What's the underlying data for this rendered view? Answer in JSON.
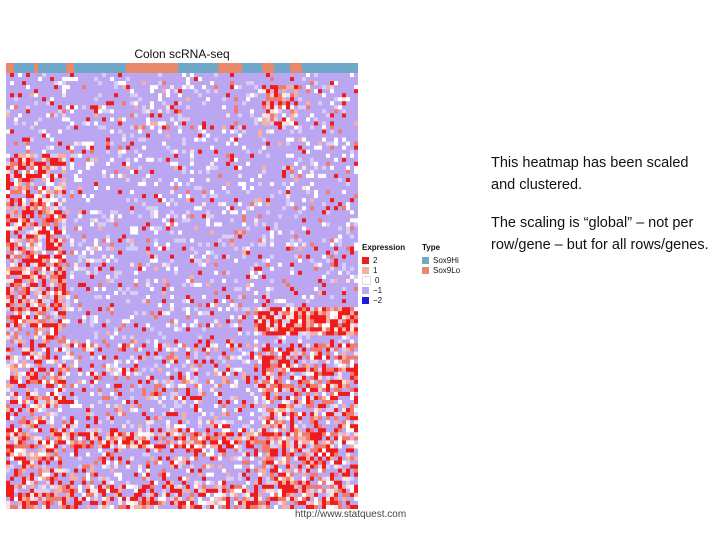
{
  "chart_data": {
    "type": "heatmap",
    "title": "Colon scRNA-seq",
    "xlabel": "",
    "ylabel": "",
    "color_scale": {
      "min": -2,
      "max": 2
    },
    "legend": {
      "expression": {
        "title": "Expression",
        "entries": [
          {
            "label": "2",
            "color": "#ee1c1c"
          },
          {
            "label": "1",
            "color": "#f5b0a6"
          },
          {
            "label": "0",
            "color": "#ffffff"
          },
          {
            "label": "−1",
            "color": "#bba6f2"
          },
          {
            "label": "−2",
            "color": "#1b1bdd"
          }
        ]
      },
      "type": {
        "title": "Type",
        "entries": [
          {
            "label": "Sox9Hi",
            "color": "#6fa8c9"
          },
          {
            "label": "Sox9Lo",
            "color": "#e8896b"
          }
        ]
      }
    },
    "column_annotation_colors": {
      "Sox9Hi": "#6fa8c9",
      "Sox9Lo": "#e8896b"
    },
    "clustered": true,
    "scaling": "global"
  },
  "notes": [
    "This heatmap has been scaled and clustered.",
    "The scaling is “global” – not per row/gene – but for all rows/genes."
  ],
  "source_url": "http://www.statquest.com"
}
